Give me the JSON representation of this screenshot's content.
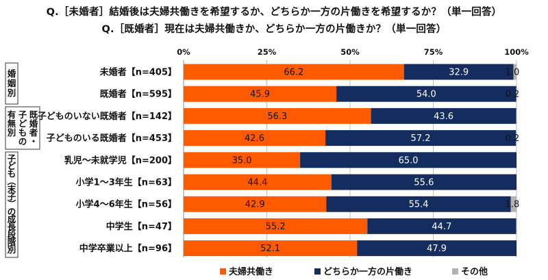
{
  "titles": {
    "line1": "Q.［未婚者］結婚後は夫婦共働きを希望するか、どちらか一方の片働きを希望するか？（単一回答）",
    "line2": "Q.［既婚者］現在は夫婦共働きか、どちらか一方の片働きか？（単一回答）"
  },
  "colors": {
    "both_working": "#ff5a00",
    "single_earner": "#152d5e",
    "other": "#b3b3b3"
  },
  "chart_data": {
    "type": "bar",
    "orientation": "horizontal",
    "stacked": true,
    "xlim": [
      0,
      100
    ],
    "xticks": [
      "0%",
      "25%",
      "50%",
      "75%",
      "100%"
    ],
    "grid": true,
    "legend_position": "bottom",
    "categories": [
      "未婚者【n=405】",
      "既婚者【n=595】",
      "子どものいない既婚者【n=142】",
      "子どものいる既婚者【n=453】",
      "乳児～未就学児【n=200】",
      "小学1～3年生【n=63】",
      "小学4～6年生【n=56】",
      "中学生【n=47】",
      "中学卒業以上【n=96】"
    ],
    "series": [
      {
        "name": "夫婦共働き",
        "values": [
          66.2,
          45.9,
          56.3,
          42.6,
          35.0,
          44.4,
          42.9,
          55.2,
          52.1
        ],
        "labels": [
          "66.2",
          "45.9",
          "56.3",
          "42.6",
          "35.0",
          "44.4",
          "42.9",
          "55.2",
          "52.1"
        ]
      },
      {
        "name": "どちらか一方の片働き",
        "values": [
          32.9,
          54.0,
          43.6,
          57.2,
          65.0,
          55.6,
          55.4,
          44.7,
          47.9
        ],
        "labels": [
          "32.9",
          "54.0",
          "43.6",
          "57.2",
          "65.0",
          "55.6",
          "55.4",
          "44.7",
          "47.9"
        ]
      },
      {
        "name": "その他",
        "values": [
          1.0,
          0.2,
          0.0,
          0.2,
          0.0,
          0.0,
          1.8,
          0.0,
          0.0
        ],
        "labels": [
          "1.0",
          "0.2",
          "",
          "0.2",
          "",
          "",
          "1.8",
          "",
          ""
        ]
      }
    ],
    "groups": [
      {
        "label": "婚姻別",
        "rows": [
          0,
          1
        ]
      },
      {
        "label_lines": [
          "既婚者・",
          "子どもの",
          "有無別"
        ],
        "rows": [
          2,
          3
        ]
      },
      {
        "label": "子ども（末子）の成長段階別",
        "rows": [
          4,
          5,
          6,
          7,
          8
        ]
      }
    ]
  }
}
